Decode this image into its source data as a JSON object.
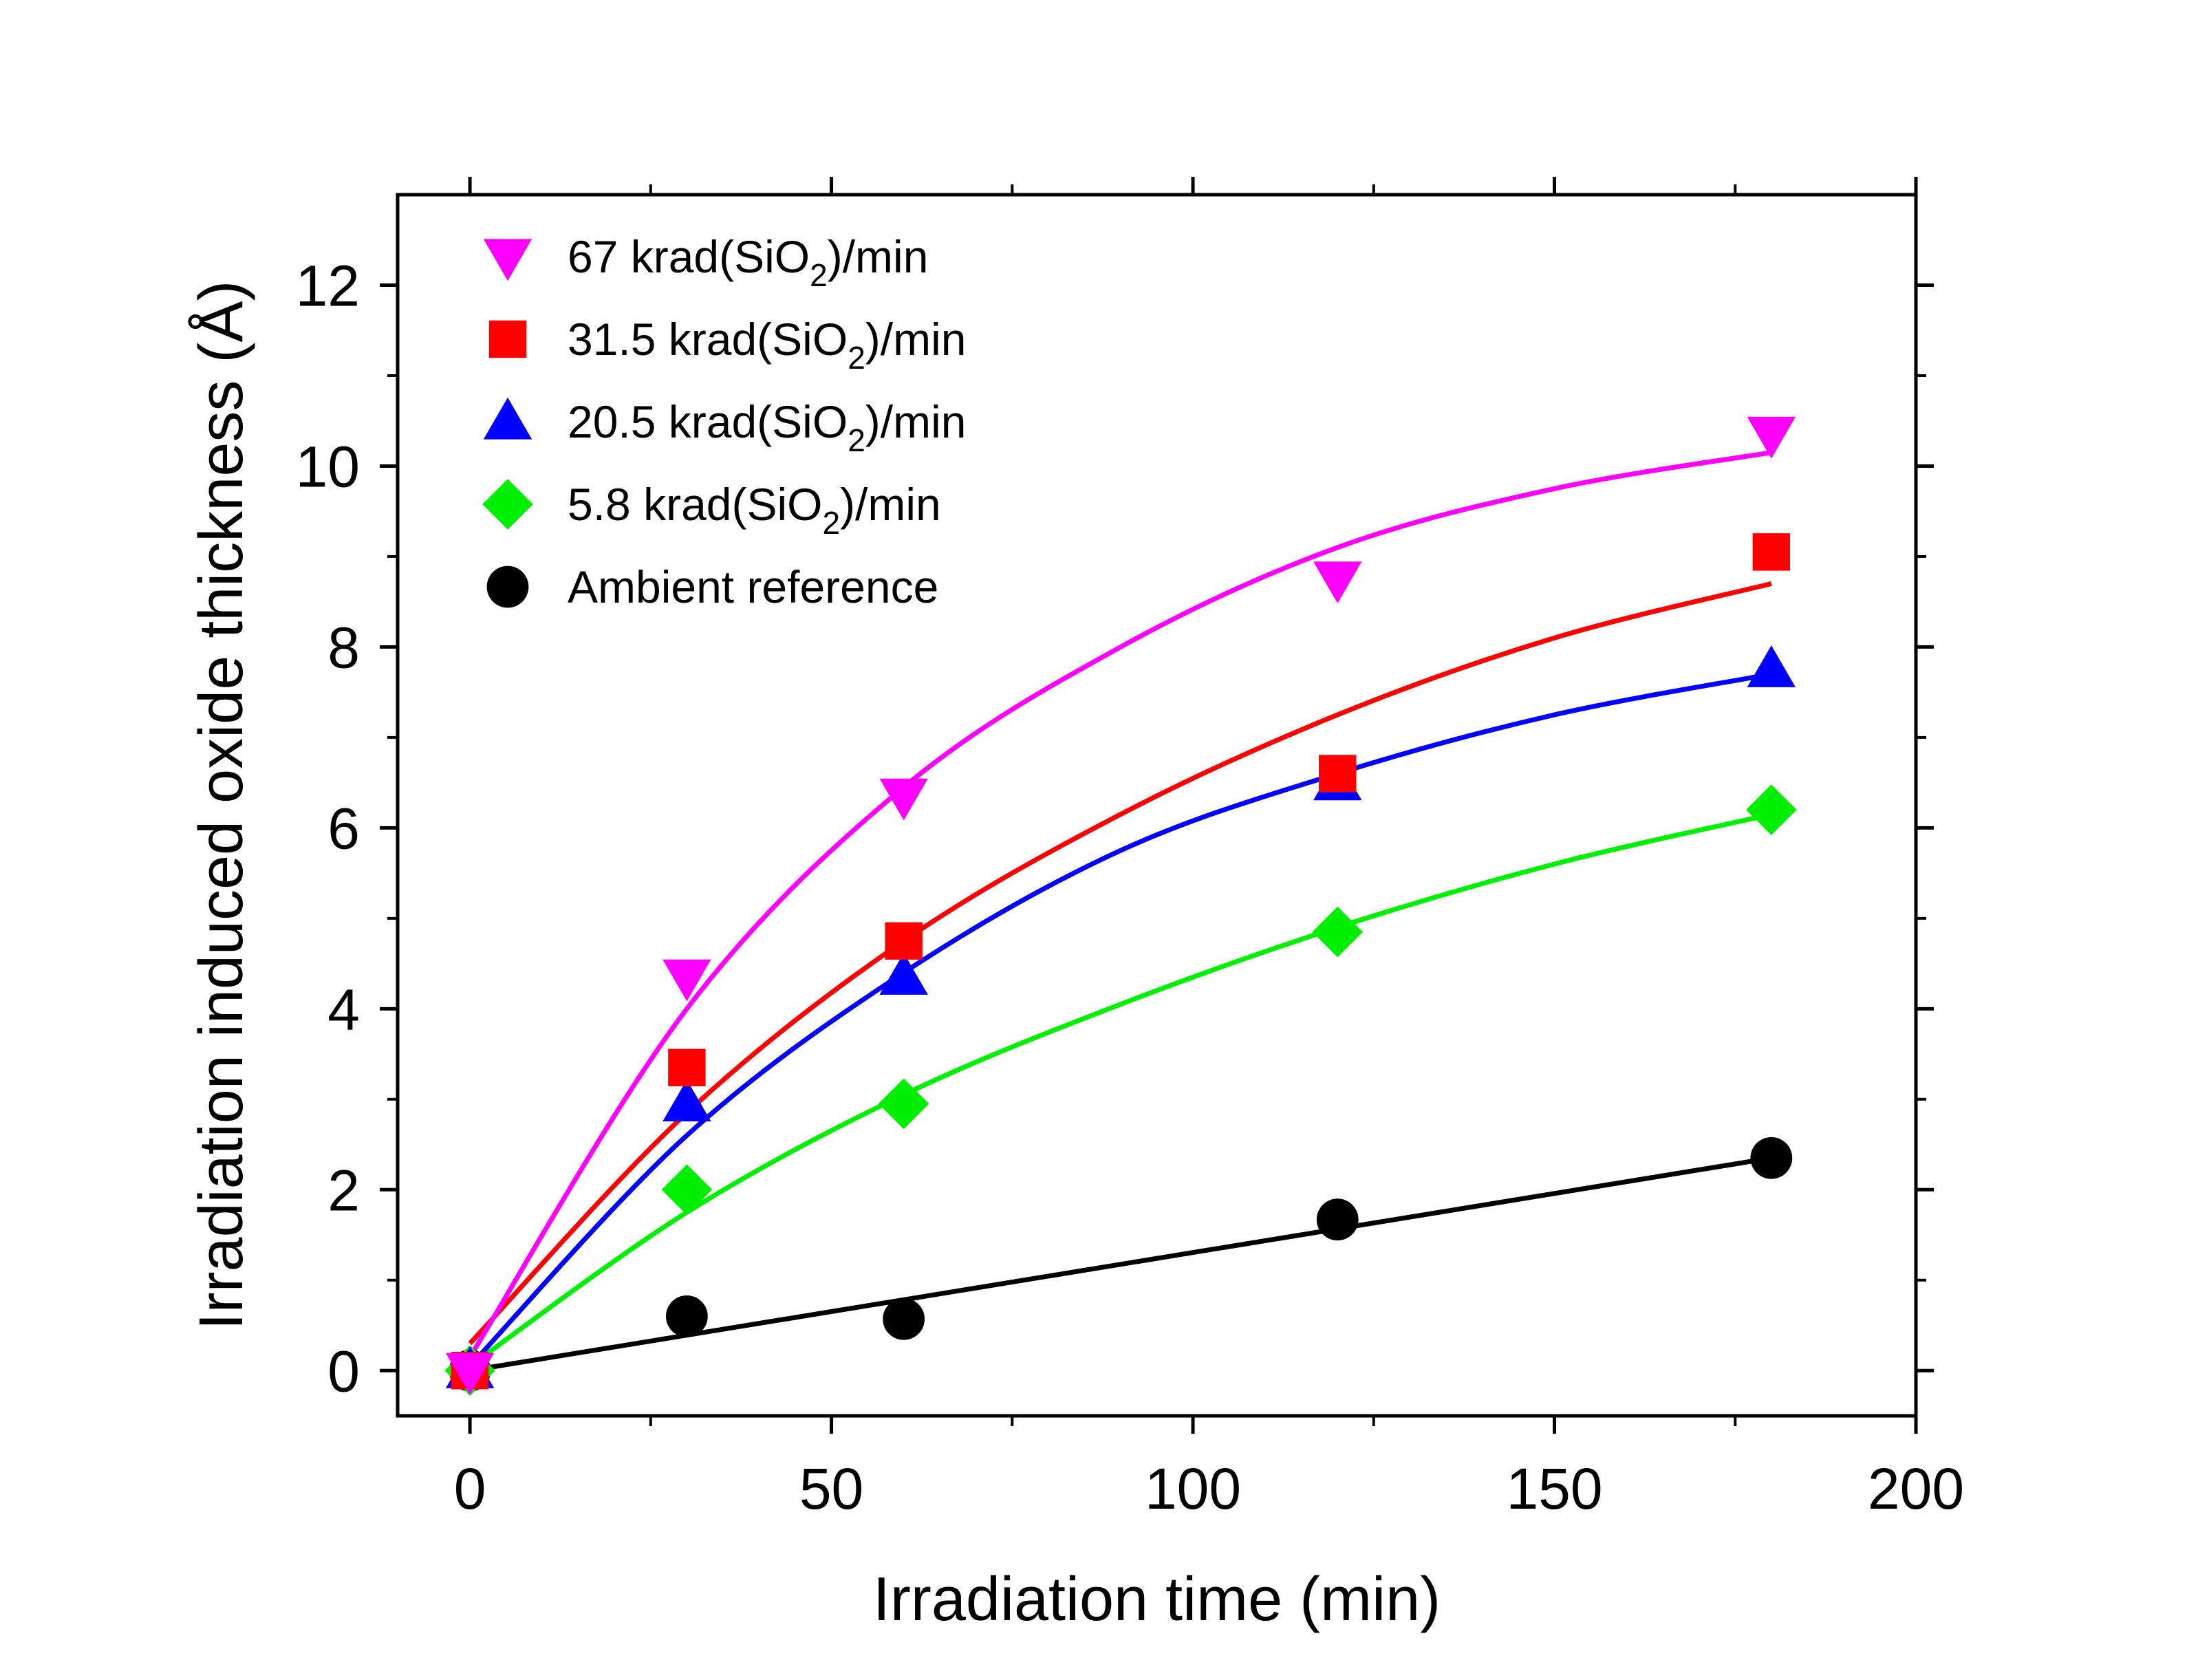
{
  "chart_data": {
    "type": "scatter",
    "xlabel": "Irradiation time (min)",
    "ylabel": "Irradiation induced oxide thickness (Å)",
    "xlim": [
      -10,
      200
    ],
    "ylim": [
      -0.5,
      13
    ],
    "xticks": [
      0,
      50,
      100,
      150,
      200
    ],
    "yticks": [
      0,
      2,
      4,
      6,
      8,
      10,
      12
    ],
    "grid": false,
    "legend_position": "top-left",
    "series": [
      {
        "name": "67 krad(SiO2)/min",
        "label_pre": "67 krad(SiO",
        "label_sub": "2",
        "label_post": ")/min",
        "marker": "triangle-down",
        "color": "#ff00ff",
        "x": [
          0,
          30,
          60,
          120,
          180
        ],
        "y": [
          0.0,
          4.35,
          6.35,
          8.75,
          10.35
        ],
        "fit": {
          "x": [
            0,
            30,
            60,
            90,
            120,
            150,
            180
          ],
          "y": [
            0.15,
            4.0,
            6.45,
            8.0,
            9.1,
            9.75,
            10.15
          ]
        }
      },
      {
        "name": "31.5 krad(SiO2)/min",
        "label_pre": "31.5 krad(SiO",
        "label_sub": "2",
        "label_post": ")/min",
        "marker": "square",
        "color": "#ff0000",
        "x": [
          0,
          30,
          60,
          120,
          180
        ],
        "y": [
          0.0,
          3.35,
          4.75,
          6.6,
          9.05
        ],
        "fit": {
          "x": [
            0,
            30,
            60,
            90,
            120,
            150,
            180
          ],
          "y": [
            0.3,
            2.85,
            4.75,
            6.15,
            7.25,
            8.1,
            8.7
          ]
        }
      },
      {
        "name": "20.5 krad(SiO2)/min",
        "label_pre": "20.5 krad(SiO",
        "label_sub": "2",
        "label_post": ")/min",
        "marker": "triangle-up",
        "color": "#0000ff",
        "x": [
          0,
          30,
          60,
          120,
          180
        ],
        "y": [
          0.0,
          2.95,
          4.35,
          6.5,
          7.75
        ],
        "fit": {
          "x": [
            0,
            30,
            60,
            90,
            120,
            150,
            180
          ],
          "y": [
            0.05,
            2.6,
            4.4,
            5.75,
            6.6,
            7.25,
            7.7
          ]
        }
      },
      {
        "name": "5.8 krad(SiO2)/min",
        "label_pre": "5.8 krad(SiO",
        "label_sub": "2",
        "label_post": ")/min",
        "marker": "diamond",
        "color": "#00ee00",
        "x": [
          0,
          30,
          60,
          120,
          180
        ],
        "y": [
          0.0,
          2.0,
          2.95,
          4.85,
          6.2
        ],
        "fit": {
          "x": [
            0,
            30,
            60,
            90,
            120,
            150,
            180
          ],
          "y": [
            0.05,
            1.75,
            3.05,
            4.05,
            4.9,
            5.6,
            6.15
          ]
        }
      },
      {
        "name": "Ambient reference",
        "label_pre": "Ambient reference",
        "label_sub": "",
        "label_post": "",
        "marker": "circle",
        "color": "#000000",
        "x": [
          0,
          30,
          60,
          120,
          180
        ],
        "y": [
          0.0,
          0.6,
          0.57,
          1.67,
          2.35
        ],
        "fit": {
          "x": [
            0,
            180
          ],
          "y": [
            0.0,
            2.35
          ]
        }
      }
    ]
  }
}
